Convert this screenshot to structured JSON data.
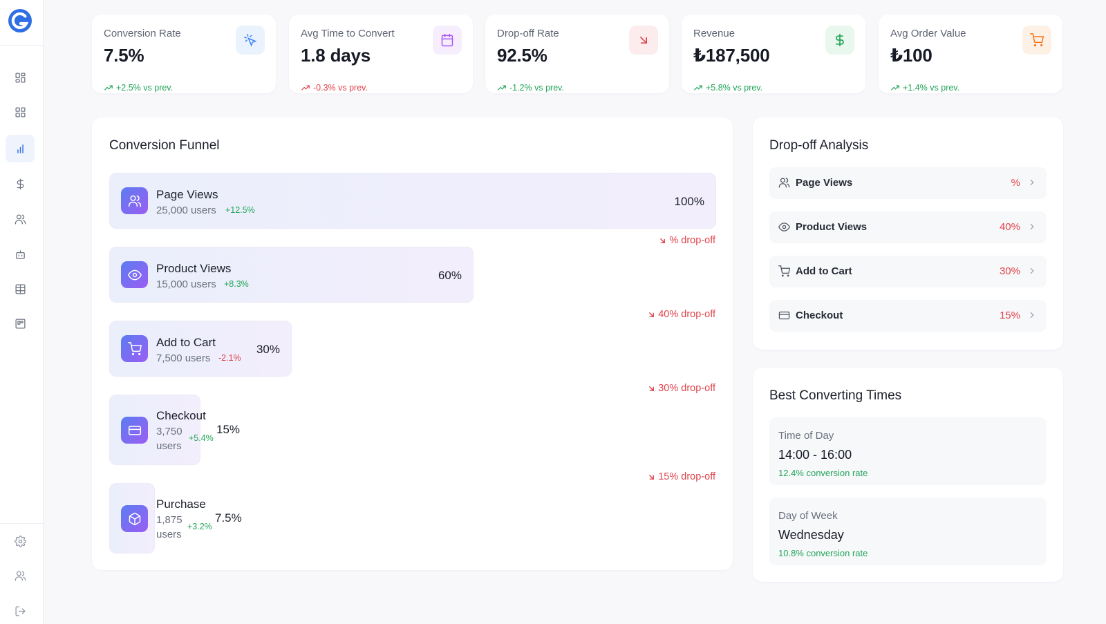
{
  "sidebar": {
    "logo": "logo-icon",
    "items": [
      {
        "name": "dashboard-icon",
        "active": false
      },
      {
        "name": "apps-grid-icon",
        "active": false
      },
      {
        "name": "bar-chart-icon",
        "active": true
      },
      {
        "name": "dollar-icon",
        "active": false
      },
      {
        "name": "users-icon",
        "active": false
      },
      {
        "name": "bot-icon",
        "active": false
      },
      {
        "name": "table-icon",
        "active": false
      },
      {
        "name": "layout-icon",
        "active": false
      }
    ],
    "bottom_items": [
      {
        "name": "settings-icon"
      },
      {
        "name": "team-icon"
      },
      {
        "name": "logout-icon"
      }
    ]
  },
  "kpis": [
    {
      "label": "Conversion Rate",
      "value": "7.5%",
      "delta": "+2.5% vs prev.",
      "trend": "up",
      "icon": "cursor-click-icon",
      "icon_color": "#3b82f6",
      "icon_bg": "#eaf2fd"
    },
    {
      "label": "Avg Time to Convert",
      "value": "1.8 days",
      "delta": "-0.3% vs prev.",
      "trend": "down",
      "icon": "calendar-icon",
      "icon_color": "#a855f7",
      "icon_bg": "#f6edfd"
    },
    {
      "label": "Drop-off Rate",
      "value": "92.5%",
      "delta": "-1.2% vs prev.",
      "trend": "up",
      "icon": "arrow-down-right-icon",
      "icon_color": "#e0434b",
      "icon_bg": "#fdeced"
    },
    {
      "label": "Revenue",
      "value": "₺187,500",
      "delta": "+5.8% vs prev.",
      "trend": "up",
      "icon": "dollar-icon",
      "icon_color": "#22a559",
      "icon_bg": "#e9f7ee"
    },
    {
      "label": "Avg Order Value",
      "value": "₺100",
      "delta": "+1.4% vs prev.",
      "trend": "up",
      "icon": "cart-icon",
      "icon_color": "#f97316",
      "icon_bg": "#fdf1e6"
    }
  ],
  "funnel": {
    "title": "Conversion Funnel",
    "stages": [
      {
        "name": "Page Views",
        "users": "25,000 users",
        "change": "+12.5%",
        "trend": "up",
        "percent": "100%",
        "icon": "users-icon",
        "dropoff": "% drop-off"
      },
      {
        "name": "Product Views",
        "users": "15,000 users",
        "change": "+8.3%",
        "trend": "up",
        "percent": "60%",
        "icon": "eye-icon",
        "dropoff": "40% drop-off"
      },
      {
        "name": "Add to Cart",
        "users": "7,500 users",
        "change": "-2.1%",
        "trend": "down",
        "percent": "30%",
        "icon": "cart-icon",
        "dropoff": "30% drop-off"
      },
      {
        "name": "Checkout",
        "users_line1": "3,750",
        "users_line2": "users",
        "change": "+5.4%",
        "trend": "up",
        "percent": "15%",
        "icon": "credit-card-icon",
        "dropoff": "15% drop-off"
      },
      {
        "name": "Purchase",
        "users_line1": "1,875",
        "users_line2": "users",
        "change": "+3.2%",
        "trend": "up",
        "percent": "7.5%",
        "icon": "package-icon"
      }
    ]
  },
  "dropoff_analysis": {
    "title": "Drop-off Analysis",
    "rows": [
      {
        "name": "Page Views",
        "percent": "%",
        "icon": "users-icon"
      },
      {
        "name": "Product Views",
        "percent": "40%",
        "icon": "eye-icon"
      },
      {
        "name": "Add to Cart",
        "percent": "30%",
        "icon": "cart-icon"
      },
      {
        "name": "Checkout",
        "percent": "15%",
        "icon": "credit-card-icon"
      }
    ]
  },
  "best_times": {
    "title": "Best Converting Times",
    "cards": [
      {
        "label": "Time of Day",
        "value": "14:00 - 16:00",
        "rate": "12.4% conversion rate"
      },
      {
        "label": "Day of Week",
        "value": "Wednesday",
        "rate": "10.8% conversion rate"
      }
    ]
  }
}
